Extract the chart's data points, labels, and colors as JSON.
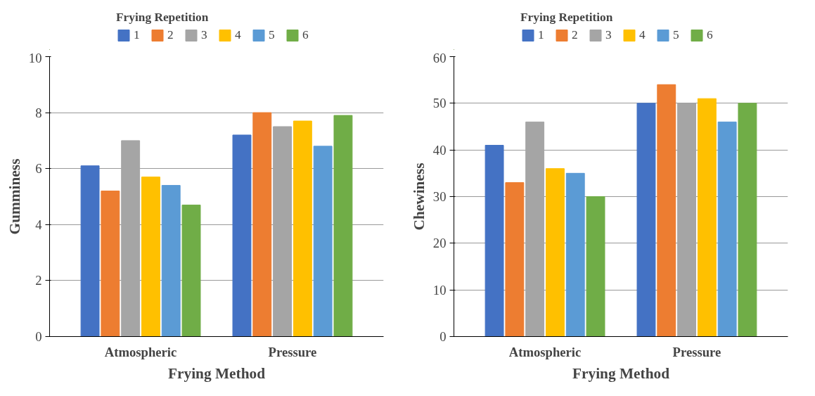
{
  "chart_data": [
    {
      "type": "bar",
      "categories": [
        "Atmospheric",
        "Pressure"
      ],
      "xlabel": "Frying Method",
      "ylabel": "Gumminess",
      "legend_title": "Frying Repetition",
      "ylim": [
        0,
        10
      ],
      "yticks": [
        0,
        2,
        4,
        6,
        8,
        10
      ],
      "grid": "y",
      "legend": "top",
      "series": [
        {
          "name": "1",
          "color": "#4472c4",
          "values": [
            6.1,
            7.2
          ]
        },
        {
          "name": "2",
          "color": "#ed7d31",
          "values": [
            5.2,
            8.0
          ]
        },
        {
          "name": "3",
          "color": "#a5a5a5",
          "values": [
            7.0,
            7.5
          ]
        },
        {
          "name": "4",
          "color": "#ffc000",
          "values": [
            5.7,
            7.7
          ]
        },
        {
          "name": "5",
          "color": "#5b9bd5",
          "values": [
            5.4,
            6.8
          ]
        },
        {
          "name": "6",
          "color": "#70ad47",
          "values": [
            4.7,
            7.9
          ]
        }
      ]
    },
    {
      "type": "bar",
      "categories": [
        "Atmospheric",
        "Pressure"
      ],
      "xlabel": "Frying Method",
      "ylabel": "Chewiness",
      "legend_title": "Frying Repetition",
      "ylim": [
        0,
        60
      ],
      "yticks": [
        0,
        10,
        20,
        30,
        40,
        50,
        60
      ],
      "grid": "y",
      "legend": "top",
      "series": [
        {
          "name": "1",
          "color": "#4472c4",
          "values": [
            41,
            50
          ]
        },
        {
          "name": "2",
          "color": "#ed7d31",
          "values": [
            33,
            54
          ]
        },
        {
          "name": "3",
          "color": "#a5a5a5",
          "values": [
            46,
            50
          ]
        },
        {
          "name": "4",
          "color": "#ffc000",
          "values": [
            36,
            51
          ]
        },
        {
          "name": "5",
          "color": "#5b9bd5",
          "values": [
            35,
            46
          ]
        },
        {
          "name": "6",
          "color": "#70ad47",
          "values": [
            30,
            50
          ]
        }
      ]
    }
  ]
}
